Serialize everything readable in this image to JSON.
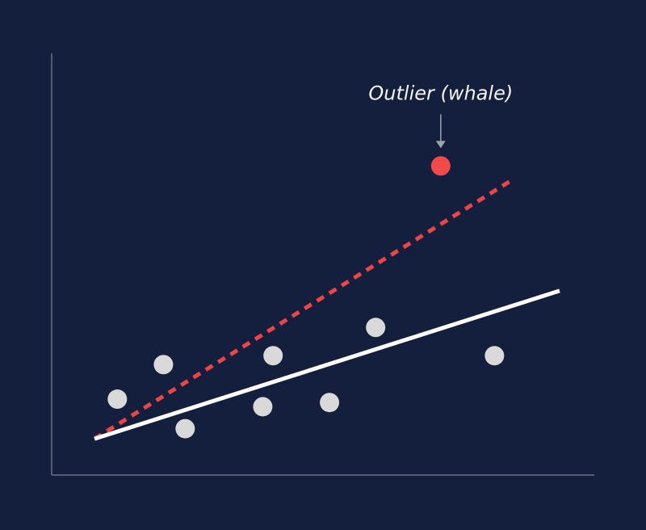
{
  "colors": {
    "background": "#141f3d",
    "axis": "#6b7280",
    "point": "#d9d9d9",
    "outlier": "#f24a4a",
    "fit_line": "#ffffff",
    "outlier_fit_line": "#ef4444",
    "annotation_text": "#f3f4f6",
    "annotation_arrow": "#9ca3af"
  },
  "chart_data": {
    "type": "scatter",
    "title": "",
    "xlabel": "",
    "ylabel": "",
    "grid": false,
    "xlim": [
      0,
      100
    ],
    "ylim": [
      0,
      100
    ],
    "points": [
      {
        "x": 12.1,
        "y": 18.0
      },
      {
        "x": 20.6,
        "y": 26.2
      },
      {
        "x": 24.6,
        "y": 11.0
      },
      {
        "x": 38.9,
        "y": 16.2
      },
      {
        "x": 40.8,
        "y": 28.3
      },
      {
        "x": 51.2,
        "y": 17.2
      },
      {
        "x": 59.7,
        "y": 35.0
      },
      {
        "x": 81.6,
        "y": 28.3
      }
    ],
    "outlier": {
      "x": 71.7,
      "y": 73.3
    },
    "fit_line": {
      "x": [
        7.9,
        93.6
      ],
      "y": [
        8.6,
        43.7
      ]
    },
    "outlier_fit_line": {
      "x": [
        7.9,
        85.0
      ],
      "y": [
        8.6,
        70.1
      ]
    },
    "annotation": {
      "text": "Outlier (whale)",
      "target": "outlier"
    }
  }
}
